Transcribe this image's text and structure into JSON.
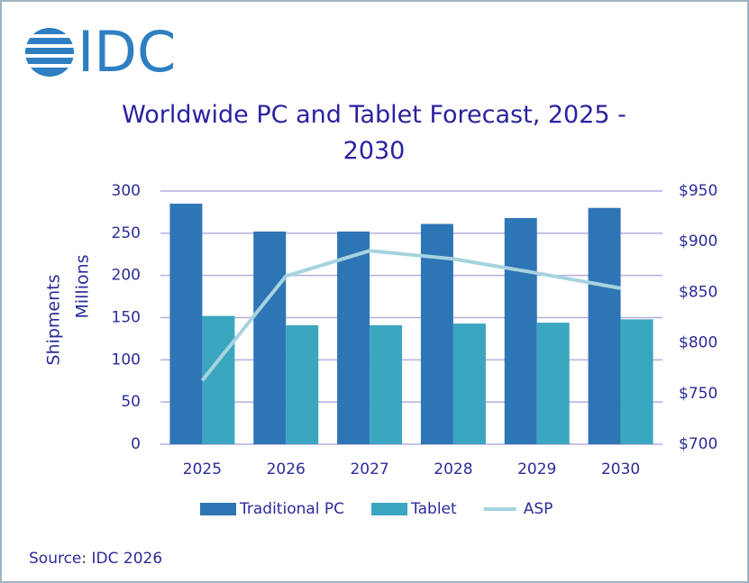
{
  "logo": "IDC",
  "chart_data": {
    "type": "bar",
    "title": "Worldwide PC and Tablet Forecast, 2025 - 2030",
    "ylabel": [
      "Shipments",
      "Millions"
    ],
    "categories": [
      "2025",
      "2026",
      "2027",
      "2028",
      "2029",
      "2030"
    ],
    "series": [
      {
        "name": "Traditional PC",
        "color": "#2e75b6",
        "values": [
          285,
          252,
          252,
          261,
          268,
          280
        ]
      },
      {
        "name": "Tablet",
        "color": "#3ba6bf",
        "values": [
          152,
          141,
          141,
          143,
          144,
          148
        ]
      },
      {
        "name": "ASP",
        "color": "#a6d3df",
        "type": "line",
        "axis": "y2",
        "values": [
          763,
          866,
          891,
          883,
          869,
          854
        ]
      }
    ],
    "ylim": [
      0,
      300
    ],
    "yticks": [
      0,
      50,
      100,
      150,
      200,
      250,
      300
    ],
    "y2lim": [
      700,
      950
    ],
    "y2ticks": [
      {
        "value": 700,
        "label": "$700"
      },
      {
        "value": 750,
        "label": "$750"
      },
      {
        "value": 800,
        "label": "$800"
      },
      {
        "value": 850,
        "label": "$850"
      },
      {
        "value": 900,
        "label": "$900"
      },
      {
        "value": 950,
        "label": "$950"
      }
    ],
    "grid": true,
    "legend": "bottom",
    "source": "Source: IDC 2026"
  }
}
